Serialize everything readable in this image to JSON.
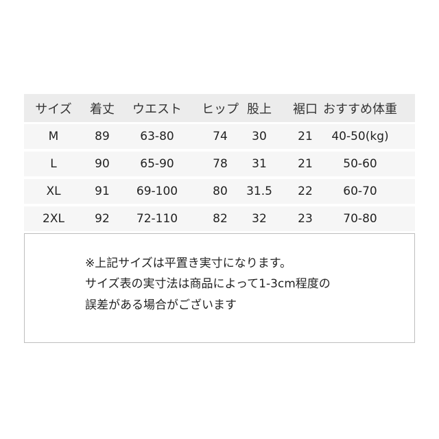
{
  "table": {
    "headers": [
      "サイズ",
      "着丈",
      "ウエスト",
      "ヒップ",
      "股上",
      "裾口",
      "おすすめ体重"
    ],
    "rows": [
      [
        "M",
        "89",
        "63-80",
        "74",
        "30",
        "21",
        "40-50(kg)"
      ],
      [
        "L",
        "90",
        "65-90",
        "78",
        "31",
        "21",
        "50-60"
      ],
      [
        "XL",
        "91",
        "69-100",
        "80",
        "31.5",
        "22",
        "60-70"
      ],
      [
        "2XL",
        "92",
        "72-110",
        "82",
        "32",
        "23",
        "70-80"
      ]
    ]
  },
  "note": {
    "lines": [
      "※上記サイズは平置き実寸になります。",
      "サイズ表の実寸法は商品によって1-3cm程度の",
      "誤差がある場合がございます"
    ]
  },
  "colors": {
    "header_bg": "#ececec",
    "row_bg": "#f6f6f6",
    "border": "#bdbdbd"
  }
}
